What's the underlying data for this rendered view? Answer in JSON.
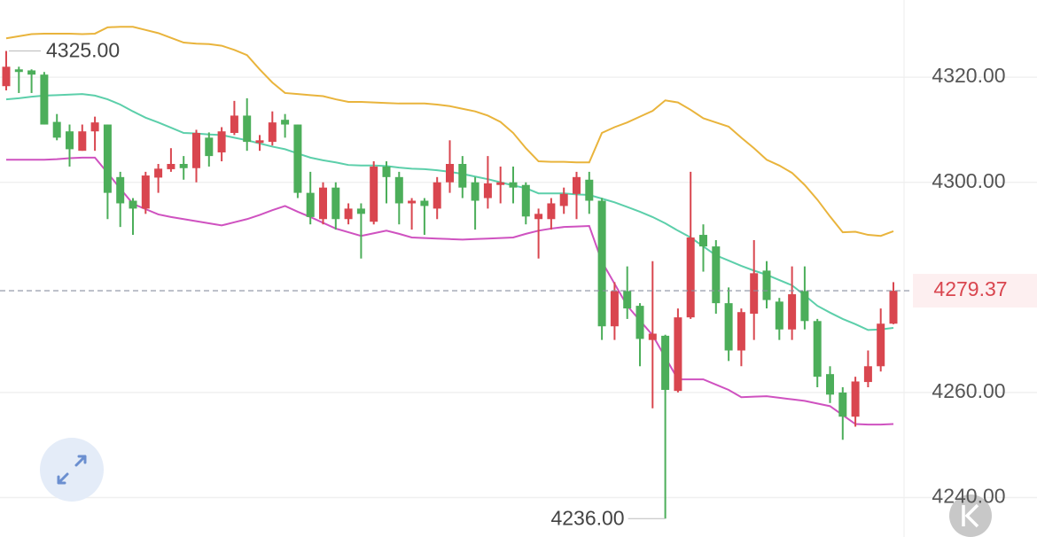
{
  "chart_data": {
    "type": "candlestick",
    "up_color": "#d9464f",
    "down_color": "#4cae5a",
    "open": [
      4318.3,
      4321.5,
      4321.3,
      4320.5,
      4311.5,
      4309.7,
      4306,
      4309.7,
      4311,
      4301,
      4296.5,
      4295,
      4300.9,
      4302.5,
      4303.5,
      4302.7,
      4308.5,
      4305.7,
      4309.4,
      4312.7,
      4307.5,
      4307.7,
      4311.9,
      4311,
      4298,
      4293,
      4299,
      4293,
      4295,
      4292.5,
      4303,
      4301,
      4296,
      4296.5,
      4295,
      4300,
      4303.5,
      4300,
      4297,
      4299.5,
      4300,
      4299.5,
      4293,
      4293,
      4295.5,
      4297.8,
      4300.5,
      4296.5,
      4272.6,
      4279.3,
      4276.5,
      4270,
      4270.8,
      4260.3,
      4274.3,
      4290,
      4287.8,
      4277,
      4268,
      4275,
      4283.2,
      4277.3,
      4272,
      4279.3,
      4273.6,
      4263.5,
      4260,
      4255.4,
      4262,
      4265,
      4273.1
    ],
    "high": [
      4325,
      4322,
      4321.5,
      4321,
      4313,
      4311,
      4311,
      4312.5,
      4311,
      4302,
      4297,
      4302,
      4303.5,
      4306.5,
      4305,
      4310,
      4309.5,
      4310.5,
      4315.5,
      4316,
      4309,
      4313.5,
      4313,
      4311,
      4302,
      4300,
      4300,
      4296,
      4296,
      4304,
      4304,
      4302,
      4297,
      4297,
      4301,
      4308,
      4305,
      4301,
      4305,
      4303,
      4303,
      4300,
      4295,
      4297,
      4299,
      4302,
      4302,
      4297,
      4281,
      4284,
      4277,
      4285,
      4271,
      4276,
      4302,
      4292,
      4289,
      4280,
      4276,
      4289,
      4285,
      4278,
      4284,
      4284,
      4274,
      4265,
      4261,
      4263,
      4268,
      4276,
      4281
    ],
    "low": [
      4317.5,
      4317,
      4317,
      4311,
      4308,
      4303,
      4306,
      4306,
      4293,
      4291.5,
      4290,
      4294,
      4298,
      4302,
      4300.5,
      4300,
      4303,
      4304,
      4309,
      4306,
      4306,
      4307,
      4308.5,
      4297,
      4292,
      4292,
      4291,
      4292,
      4285.5,
      4292,
      4296,
      4292,
      4291,
      4290,
      4293,
      4298,
      4297,
      4291,
      4295,
      4296,
      4296,
      4292,
      4285.5,
      4291,
      4294,
      4293,
      4294,
      4270,
      4270,
      4274,
      4265,
      4257,
      4236,
      4260,
      4274,
      4283,
      4275,
      4266,
      4265,
      4270,
      4276,
      4270,
      4270,
      4272,
      4261,
      4258,
      4251,
      4253.5,
      4261,
      4264,
      4273
    ],
    "close": [
      4322,
      4321,
      4320.5,
      4311,
      4308.5,
      4306.3,
      4309.7,
      4311.4,
      4298,
      4296,
      4295,
      4301.3,
      4302.6,
      4303.5,
      4302.7,
      4309.4,
      4305,
      4309.7,
      4312.7,
      4307.7,
      4308,
      4311.4,
      4311,
      4298,
      4293.4,
      4299,
      4293,
      4295,
      4294,
      4303,
      4301,
      4296,
      4296.5,
      4295.5,
      4300,
      4303.5,
      4299,
      4296.5,
      4299.8,
      4300,
      4299,
      4293.5,
      4294,
      4296,
      4297.8,
      4301,
      4296.5,
      4272.6,
      4279.3,
      4276,
      4270.2,
      4271.2,
      4260.5,
      4274.3,
      4289.5,
      4287.8,
      4277,
      4268,
      4275.3,
      4282.7,
      4277.6,
      4272,
      4278.7,
      4273.6,
      4263,
      4259.6,
      4255.4,
      4262.1,
      4265,
      4273.1,
      4279.37
    ],
    "bands": [
      {
        "color": "#e9b43c",
        "values": [
          4327.4,
          4327.8,
          4328.2,
          4328.3,
          4328.3,
          4328.3,
          4328.2,
          4328.3,
          4329.5,
          4329.6,
          4329.6,
          4329,
          4328.4,
          4327.5,
          4326.6,
          4326.4,
          4326.3,
          4326,
          4325.2,
          4324.2,
          4321.5,
          4319,
          4317,
          4316.8,
          4316.6,
          4316.4,
          4315.8,
          4315.3,
          4315.3,
          4315.2,
          4315.1,
          4315,
          4315,
          4315,
          4314.8,
          4314.5,
          4314,
          4313.5,
          4312.7,
          4311.5,
          4309.4,
          4306.5,
          4304,
          4303.9,
          4303.9,
          4303.8,
          4303.8,
          4309.4,
          4310.5,
          4311.4,
          4312.5,
          4313.6,
          4315.6,
          4315.2,
          4313.8,
          4312.2,
          4311.4,
          4310.6,
          4308.5,
          4306.5,
          4304.3,
          4303.2,
          4301.8,
          4299.5,
          4296.7,
          4293.5,
          4290.5,
          4290.6,
          4290,
          4289.8,
          4290.7
        ]
      },
      {
        "color": "#5ccfaa",
        "values": [
          4315.8,
          4316,
          4316.3,
          4316.5,
          4316.6,
          4316.7,
          4316.8,
          4316.5,
          4315.8,
          4314.8,
          4313.5,
          4312.3,
          4311.4,
          4310.4,
          4309.4,
          4309.3,
          4309.1,
          4309,
          4308.5,
          4308,
          4307.4,
          4306.8,
          4306.3,
          4305.5,
          4304.7,
          4304.2,
          4303.8,
          4303.3,
          4303.2,
          4303.2,
          4303.1,
          4302.8,
          4302.6,
          4302.5,
          4302.3,
          4302,
          4301.6,
          4301.1,
          4300.6,
          4300,
          4299.4,
          4298.9,
          4297.9,
          4297.9,
          4297.9,
          4297.7,
          4297.6,
          4296.9,
          4296.2,
          4295.3,
          4294.4,
          4293.4,
          4292.2,
          4290.8,
          4289.5,
          4287.8,
          4286.1,
          4285.1,
          4284.1,
          4283.2,
          4282.4,
          4281.4,
          4280.4,
          4278.5,
          4276.5,
          4275.2,
          4274,
          4273,
          4271.9,
          4272,
          4272.3
        ]
      },
      {
        "color": "#cf52c0",
        "values": [
          4304.3,
          4304.3,
          4304.3,
          4304.3,
          4304.4,
          4304.6,
          4304.7,
          4304.7,
          4301.8,
          4298.8,
          4295.9,
          4294.9,
          4293.9,
          4293.4,
          4293,
          4292.6,
          4292.2,
          4291.8,
          4292.4,
          4293,
          4293.8,
          4294.7,
          4295.5,
          4294.4,
          4293.4,
          4292.3,
          4291.2,
          4290.5,
          4289.8,
          4290.3,
          4290.8,
          4290.2,
          4289.5,
          4289.4,
          4289.3,
          4289.2,
          4289.1,
          4289.2,
          4289.3,
          4289.4,
          4289.5,
          4290.2,
          4290.8,
          4291.2,
          4291.5,
          4291.6,
          4291.7,
          4284.9,
          4280.7,
          4276.5,
          4273.7,
          4270.9,
          4266.7,
          4262.5,
          4262.5,
          4262.5,
          4261.5,
          4260.5,
          4259.1,
          4259.2,
          4259.3,
          4259,
          4258.7,
          4258.4,
          4257.9,
          4257.4,
          4255.7,
          4254,
          4253.9,
          4253.9,
          4254
        ]
      }
    ],
    "ylim": [
      4232.5,
      4334.7
    ],
    "yticks": [
      {
        "value": 4240,
        "label": "4240.00"
      },
      {
        "value": 4260,
        "label": "4260.00"
      },
      {
        "value": 4300,
        "label": "4300.00"
      },
      {
        "value": 4320,
        "label": "4320.00"
      }
    ],
    "grid": true,
    "high_marker": {
      "value": 4325,
      "label": "4325.00"
    },
    "low_marker": {
      "value": 4236,
      "label": "4236.00"
    },
    "last_price": 4279.37
  }
}
